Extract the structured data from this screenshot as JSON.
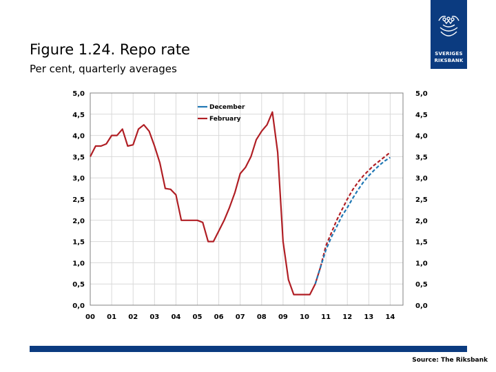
{
  "header": {
    "title": "Figure 1.24. Repo rate",
    "subtitle": "Per cent, quarterly averages"
  },
  "logo": {
    "line1": "SVERIGES",
    "line2": "RIKSBANK",
    "icon": "crown-emblem-icon",
    "color": "#0b3b80"
  },
  "footer": {
    "source": "Source: The Riksbank",
    "bar_color": "#0b3b80"
  },
  "chart_data": {
    "type": "line",
    "title": "",
    "xlabel": "",
    "ylabel": "",
    "xlim": [
      0,
      14.5
    ],
    "ylim": [
      0,
      5
    ],
    "x_tick_labels": [
      "00",
      "01",
      "02",
      "03",
      "04",
      "05",
      "06",
      "07",
      "08",
      "09",
      "10",
      "11",
      "12",
      "13",
      "14"
    ],
    "y_tick_labels": [
      "0,0",
      "0,5",
      "1,0",
      "1,5",
      "2,0",
      "2,5",
      "3,0",
      "3,5",
      "4,0",
      "4,5",
      "5,0"
    ],
    "y_ticks_right": true,
    "grid": true,
    "legend_position": "top-center",
    "series": [
      {
        "name": "February",
        "color": "#b01e24",
        "style": "solid",
        "x": [
          0.0,
          0.25,
          0.5,
          0.75,
          1.0,
          1.25,
          1.5,
          1.75,
          2.0,
          2.25,
          2.5,
          2.75,
          3.0,
          3.25,
          3.5,
          3.75,
          4.0,
          4.25,
          4.5,
          4.75,
          5.0,
          5.25,
          5.5,
          5.75,
          6.0,
          6.25,
          6.5,
          6.75,
          7.0,
          7.25,
          7.5,
          7.75,
          8.0,
          8.25,
          8.5,
          8.75,
          9.0,
          9.25,
          9.5,
          9.75,
          10.0,
          10.25,
          10.5,
          10.75
        ],
        "y": [
          3.5,
          3.75,
          3.75,
          3.8,
          4.0,
          4.0,
          4.15,
          3.75,
          3.78,
          4.15,
          4.25,
          4.1,
          3.75,
          3.35,
          2.75,
          2.73,
          2.6,
          2.0,
          2.0,
          2.0,
          2.0,
          1.95,
          1.5,
          1.5,
          1.75,
          2.0,
          2.3,
          2.65,
          3.1,
          3.25,
          3.5,
          3.9,
          4.1,
          4.25,
          4.55,
          3.6,
          1.5,
          0.6,
          0.25,
          0.25,
          0.25,
          0.25,
          0.5,
          0.9
        ]
      },
      {
        "name": "February",
        "color": "#b01e24",
        "style": "dashed",
        "x": [
          10.75,
          11.0,
          11.25,
          11.5,
          11.75,
          12.0,
          12.25,
          12.5,
          12.75,
          13.0,
          13.25,
          13.5,
          13.75,
          14.0
        ],
        "y": [
          0.9,
          1.4,
          1.7,
          2.0,
          2.25,
          2.5,
          2.72,
          2.9,
          3.05,
          3.18,
          3.3,
          3.4,
          3.5,
          3.6
        ]
      },
      {
        "name": "December",
        "color": "#1f77b4",
        "style": "dashed",
        "x": [
          10.5,
          10.75,
          11.0,
          11.25,
          11.5,
          11.75,
          12.0,
          12.25,
          12.5,
          12.75,
          13.0,
          13.25,
          13.5,
          13.75,
          14.0
        ],
        "y": [
          0.5,
          0.9,
          1.3,
          1.6,
          1.85,
          2.1,
          2.3,
          2.52,
          2.72,
          2.9,
          3.05,
          3.18,
          3.3,
          3.4,
          3.48
        ]
      }
    ],
    "legend": [
      {
        "label": "December",
        "color": "#1f77b4"
      },
      {
        "label": "February",
        "color": "#b01e24"
      }
    ]
  }
}
